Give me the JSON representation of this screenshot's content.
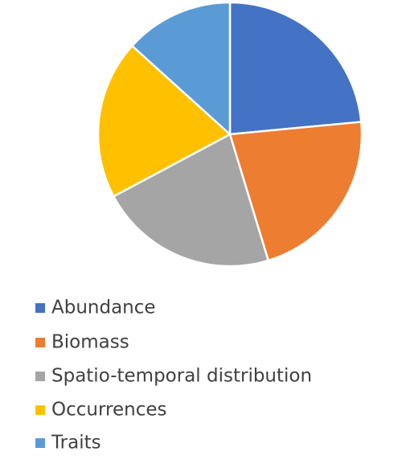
{
  "chart_data": {
    "type": "pie",
    "categories": [
      "Abundance",
      "Biomass",
      "Spatio-temporal distribution",
      "Occurrences",
      "Traits"
    ],
    "values": [
      23.5,
      21.8,
      21.9,
      19.5,
      13.3
    ],
    "colors": [
      "#4472c4",
      "#ed7d31",
      "#a5a5a5",
      "#ffc000",
      "#5b9bd5"
    ]
  }
}
